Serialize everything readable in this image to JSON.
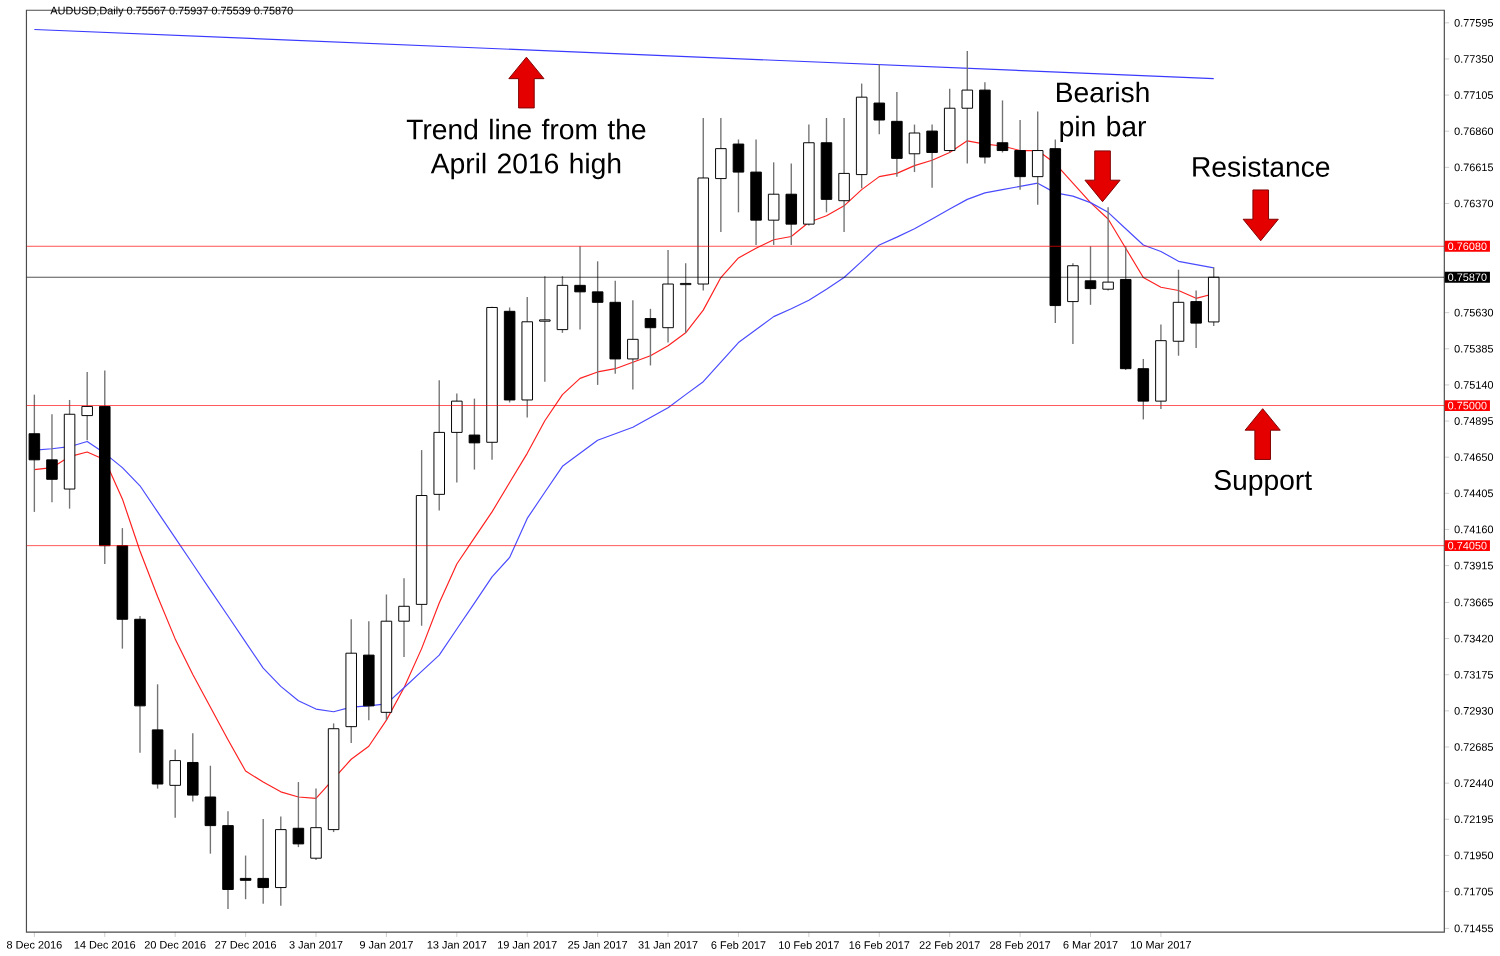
{
  "chart_data": {
    "type": "candlestick",
    "title": "AUDUSD,Daily  0.75567 0.75937 0.75539 0.75870",
    "categories": [
      "8 Dec 2016",
      null,
      null,
      null,
      "14 Dec 2016",
      null,
      null,
      null,
      "20 Dec 2016",
      null,
      null,
      null,
      "27 Dec 2016",
      null,
      null,
      null,
      "3 Jan 2017",
      null,
      null,
      null,
      "9 Jan 2017",
      null,
      null,
      null,
      "13 Jan 2017",
      null,
      null,
      null,
      "19 Jan 2017",
      null,
      null,
      null,
      "25 Jan 2017",
      null,
      null,
      null,
      "31 Jan 2017",
      null,
      null,
      null,
      "6 Feb 2017",
      null,
      null,
      null,
      "10 Feb 2017",
      null,
      null,
      null,
      "16 Feb 2017",
      null,
      null,
      null,
      "22 Feb 2017",
      null,
      null,
      null,
      "28 Feb 2017",
      null,
      null,
      null,
      "6 Mar 2017",
      null,
      null,
      null,
      "10 Mar 2017",
      null,
      null,
      null
    ],
    "ohlc": [
      [
        0.74809,
        0.75074,
        0.74279,
        0.74632
      ],
      [
        0.74632,
        0.74941,
        0.74345,
        0.745
      ],
      [
        0.74434,
        0.75038,
        0.74301,
        0.74941
      ],
      [
        0.74932,
        0.75228,
        0.74765,
        0.74994
      ],
      [
        0.74994,
        0.75237,
        0.73926,
        0.7405
      ],
      [
        0.7405,
        0.74169,
        0.73352,
        0.73551
      ],
      [
        0.73551,
        0.73573,
        0.72646,
        0.72964
      ],
      [
        0.72801,
        0.7311,
        0.72403,
        0.72434
      ],
      [
        0.72425,
        0.72668,
        0.72205,
        0.72593
      ],
      [
        0.7258,
        0.72778,
        0.72315,
        0.72359
      ],
      [
        0.72346,
        0.72558,
        0.71962,
        0.72152
      ],
      [
        0.72152,
        0.72249,
        0.71587,
        0.71719
      ],
      [
        0.71794,
        0.71949,
        0.71653,
        0.71781
      ],
      [
        0.71794,
        0.72196,
        0.71622,
        0.71732
      ],
      [
        0.71732,
        0.72214,
        0.71609,
        0.72125
      ],
      [
        0.72134,
        0.72447,
        0.72006,
        0.72028
      ],
      [
        0.71931,
        0.72403,
        0.71918,
        0.72138
      ],
      [
        0.72125,
        0.72845,
        0.72108,
        0.72809
      ],
      [
        0.72823,
        0.73551,
        0.72712,
        0.73321
      ],
      [
        0.73308,
        0.73538,
        0.72867,
        0.72964
      ],
      [
        0.7292,
        0.73719,
        0.72867,
        0.73538
      ],
      [
        0.73538,
        0.73829,
        0.73295,
        0.73639
      ],
      [
        0.73652,
        0.74698,
        0.73507,
        0.7439
      ],
      [
        0.74398,
        0.75171,
        0.74288,
        0.74818
      ],
      [
        0.74818,
        0.75082,
        0.74478,
        0.7503
      ],
      [
        0.748,
        0.75047,
        0.74566,
        0.74747
      ],
      [
        0.74751,
        0.7567,
        0.74632,
        0.75665
      ],
      [
        0.75639,
        0.75665,
        0.75021,
        0.75038
      ],
      [
        0.75038,
        0.75736,
        0.74919,
        0.75568
      ],
      [
        0.75572,
        0.75877,
        0.75162,
        0.75581
      ],
      [
        0.75515,
        0.75877,
        0.75493,
        0.75815
      ],
      [
        0.75815,
        0.7608,
        0.75515,
        0.75771
      ],
      [
        0.75771,
        0.75978,
        0.7514,
        0.757
      ],
      [
        0.757,
        0.75846,
        0.75215,
        0.75316
      ],
      [
        0.75316,
        0.75714,
        0.75109,
        0.75449
      ],
      [
        0.7559,
        0.75656,
        0.75272,
        0.75528
      ],
      [
        0.75528,
        0.76054,
        0.75427,
        0.75824
      ],
      [
        0.7582,
        0.75965,
        0.75493,
        0.75828
      ],
      [
        0.75824,
        0.7695,
        0.7578,
        0.76543
      ],
      [
        0.76539,
        0.7695,
        0.76177,
        0.76742
      ],
      [
        0.76773,
        0.76804,
        0.7631,
        0.76583
      ],
      [
        0.76583,
        0.76804,
        0.76089,
        0.76257
      ],
      [
        0.76257,
        0.76649,
        0.76089,
        0.76433
      ],
      [
        0.76433,
        0.76641,
        0.76089,
        0.7623
      ],
      [
        0.7623,
        0.76905,
        0.76221,
        0.76782
      ],
      [
        0.76782,
        0.7695,
        0.7631,
        0.76398
      ],
      [
        0.76389,
        0.7695,
        0.76177,
        0.76574
      ],
      [
        0.76566,
        0.77183,
        0.76473,
        0.77091
      ],
      [
        0.77051,
        0.77316,
        0.76839,
        0.76936
      ],
      [
        0.76927,
        0.77126,
        0.76552,
        0.76676
      ],
      [
        0.76707,
        0.76905,
        0.76583,
        0.76848
      ],
      [
        0.76861,
        0.76905,
        0.76477,
        0.76716
      ],
      [
        0.76729,
        0.77148,
        0.76716,
        0.77016
      ],
      [
        0.77016,
        0.77404,
        0.76641,
        0.77139
      ],
      [
        0.77139,
        0.77192,
        0.76641,
        0.76685
      ],
      [
        0.76782,
        0.77069,
        0.76716,
        0.76729
      ],
      [
        0.76729,
        0.76936,
        0.76464,
        0.76552
      ],
      [
        0.76552,
        0.76994,
        0.76362,
        0.76729
      ],
      [
        0.76742,
        0.76804,
        0.75559,
        0.75678
      ],
      [
        0.75705,
        0.75965,
        0.75418,
        0.75948
      ],
      [
        0.75846,
        0.7608,
        0.75683,
        0.75793
      ],
      [
        0.75789,
        0.76345,
        0.7578,
        0.75837
      ],
      [
        0.75855,
        0.7608,
        0.75241,
        0.7525
      ],
      [
        0.7525,
        0.75316,
        0.74906,
        0.7503
      ],
      [
        0.7503,
        0.7555,
        0.74977,
        0.7544
      ],
      [
        0.75436,
        0.75921,
        0.75338,
        0.757
      ],
      [
        0.75705,
        0.7578,
        0.75391,
        0.75559
      ],
      [
        0.75567,
        0.75937,
        0.75539,
        0.7587
      ]
    ],
    "series": [
      {
        "type": "line",
        "color": "#ff2020",
        "values": [
          0.74566,
          0.74579,
          0.74654,
          0.74685,
          0.74632,
          0.74367,
          0.74014,
          0.73705,
          0.73418,
          0.73176,
          0.72955,
          0.72734,
          0.72522,
          0.72447,
          0.72381,
          0.72346,
          0.72337,
          0.72469,
          0.72602,
          0.7269,
          0.72867,
          0.73087,
          0.73352,
          0.73661,
          0.73926,
          0.74103,
          0.74279,
          0.74478,
          0.74676,
          0.74897,
          0.75074,
          0.75184,
          0.75228,
          0.7525,
          0.75294,
          0.75338,
          0.75405,
          0.75493,
          0.75647,
          0.75868,
          0.76001,
          0.76067,
          0.76124,
          0.76146,
          0.76243,
          0.76287,
          0.76354,
          0.76464,
          0.76552,
          0.76574,
          0.76627,
          0.76663,
          0.76716,
          0.76795,
          0.76773,
          0.7676,
          0.76729,
          0.76729,
          0.76641,
          0.76508,
          0.76376,
          0.76265,
          0.76067,
          0.75868,
          0.75802,
          0.7578,
          0.75727,
          0.75758
        ]
      },
      {
        "type": "line",
        "color": "#4a4aff",
        "values": [
          0.74698,
          0.74707,
          0.74721,
          0.74756,
          0.74676,
          0.74579,
          0.74456,
          0.74279,
          0.74103,
          0.73926,
          0.73749,
          0.73573,
          0.73396,
          0.7322,
          0.73096,
          0.72999,
          0.72942,
          0.72924,
          0.72955,
          0.72964,
          0.72977,
          0.73087,
          0.73198,
          0.73308,
          0.73485,
          0.73661,
          0.73838,
          0.7397,
          0.74235,
          0.74412,
          0.74588,
          0.74676,
          0.74765,
          0.74809,
          0.74853,
          0.74919,
          0.74985,
          0.75074,
          0.75162,
          0.75294,
          0.75427,
          0.75515,
          0.75603,
          0.75656,
          0.75714,
          0.75789,
          0.75868,
          0.75978,
          0.76089,
          0.76142,
          0.76199,
          0.76265,
          0.76332,
          0.76398,
          0.76442,
          0.76464,
          0.76486,
          0.76508,
          0.76442,
          0.7642,
          0.76376,
          0.7631,
          0.76199,
          0.76089,
          0.76045,
          0.75978,
          0.75956,
          0.75934
        ]
      },
      {
        "type": "line",
        "color": "#3a3aff",
        "values": [
          0.7755,
          null,
          null,
          null,
          null,
          null,
          null,
          null,
          null,
          null,
          null,
          null,
          null,
          null,
          null,
          null,
          null,
          null,
          null,
          null,
          null,
          null,
          null,
          null,
          null,
          null,
          null,
          null,
          null,
          null,
          null,
          null,
          null,
          null,
          null,
          null,
          null,
          null,
          null,
          null,
          null,
          null,
          null,
          null,
          null,
          null,
          null,
          null,
          null,
          null,
          null,
          null,
          null,
          null,
          null,
          null,
          null,
          null,
          null,
          null,
          null,
          null,
          null,
          null,
          null,
          null,
          null,
          0.77217
        ]
      }
    ],
    "ylim": [
      0.7143,
      0.7768
    ],
    "yticks": [
      {
        "value": 0.77595,
        "label": "0.77595"
      },
      {
        "value": 0.7735,
        "label": "0.77350"
      },
      {
        "value": 0.77105,
        "label": "0.77105"
      },
      {
        "value": 0.7686,
        "label": "0.76860"
      },
      {
        "value": 0.76615,
        "label": "0.76615"
      },
      {
        "value": 0.7637,
        "label": "0.76370"
      },
      {
        "value": 0.7563,
        "label": "0.75630"
      },
      {
        "value": 0.75385,
        "label": "0.75385"
      },
      {
        "value": 0.7514,
        "label": "0.75140"
      },
      {
        "value": 0.74895,
        "label": "0.74895"
      },
      {
        "value": 0.7465,
        "label": "0.74650"
      },
      {
        "value": 0.74405,
        "label": "0.74405"
      },
      {
        "value": 0.7416,
        "label": "0.74160"
      },
      {
        "value": 0.73915,
        "label": "0.73915"
      },
      {
        "value": 0.73665,
        "label": "0.73665"
      },
      {
        "value": 0.7342,
        "label": "0.73420"
      },
      {
        "value": 0.73175,
        "label": "0.73175"
      },
      {
        "value": 0.7293,
        "label": "0.72930"
      },
      {
        "value": 0.72685,
        "label": "0.72685"
      },
      {
        "value": 0.7244,
        "label": "0.72440"
      },
      {
        "value": 0.72195,
        "label": "0.72195"
      },
      {
        "value": 0.7195,
        "label": "0.71950"
      },
      {
        "value": 0.71705,
        "label": "0.71705"
      },
      {
        "value": 0.71455,
        "label": "0.71455"
      }
    ],
    "ref_lines": [
      {
        "axis": "y",
        "value": 0.7608,
        "label": "0.76080",
        "color": "#ff0000"
      },
      {
        "axis": "y",
        "value": 0.7587,
        "label": "0.75870",
        "color": "#000000"
      },
      {
        "axis": "y",
        "value": 0.75,
        "label": "0.75000",
        "color": "#ff0000"
      },
      {
        "axis": "y",
        "value": 0.7405,
        "label": "0.74050",
        "color": "#ff0000"
      }
    ],
    "annotations": [
      "Trend line from the April 2016 high",
      "Bearish pin bar",
      "Resistance",
      "Support"
    ]
  }
}
